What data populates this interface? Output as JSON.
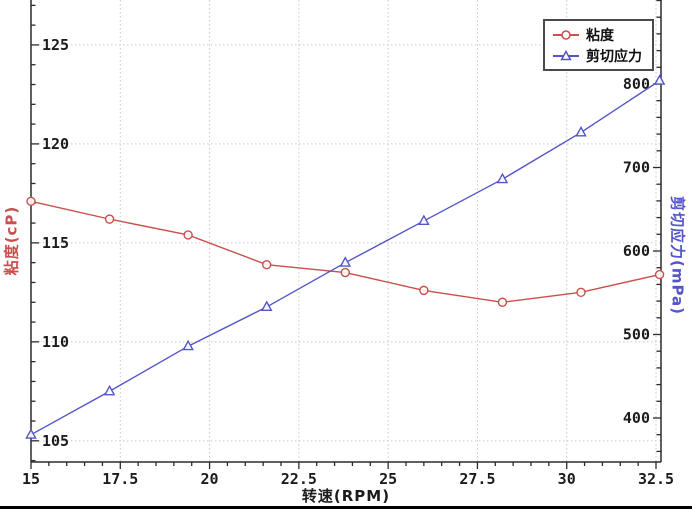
{
  "chart_data": {
    "type": "line",
    "title": "",
    "xlabel": "转速(RPM)",
    "ylabel_left": "粘度(cP)",
    "ylabel_right": "剪切应力(mPa)",
    "x": [
      15.0,
      17.2,
      19.4,
      21.6,
      23.8,
      26.0,
      28.2,
      30.4,
      32.6
    ],
    "series": [
      {
        "name": "粘度",
        "axis": "left",
        "unit": "cP",
        "color": "#c9504c",
        "marker": "circle",
        "values": [
          117.1,
          116.2,
          115.4,
          113.9,
          113.5,
          112.6,
          112.0,
          112.5,
          113.4
        ]
      },
      {
        "name": "剪切应力",
        "axis": "right",
        "unit": "mPa",
        "color": "#5355c8",
        "marker": "triangle",
        "values": [
          380,
          432,
          486,
          533,
          586,
          636,
          686,
          742,
          804
        ]
      }
    ],
    "x_ticks": [
      15,
      17.5,
      20,
      22.5,
      25,
      27.5,
      30,
      32.5
    ],
    "x_minor_step": 0.5,
    "left_ticks": [
      105,
      110,
      115,
      120,
      125
    ],
    "left_minor_step": 1,
    "right_ticks": [
      400,
      500,
      600,
      700,
      800
    ],
    "right_minor_step": 20,
    "xlim": [
      15,
      32.64
    ],
    "ylim_left": [
      103.93,
      127.27
    ],
    "ylim_right": [
      347.3,
      900.6
    ],
    "grid": true,
    "legend_position": "top-right"
  },
  "legend": {
    "entries": [
      "粘度",
      "剪切应力"
    ]
  },
  "colors": {
    "grid": "#c9c9c9",
    "spine": "#2b2b2b",
    "tick_text": "#1c1c1c",
    "background": "#ffffff",
    "bottom_bar": "#000000"
  }
}
